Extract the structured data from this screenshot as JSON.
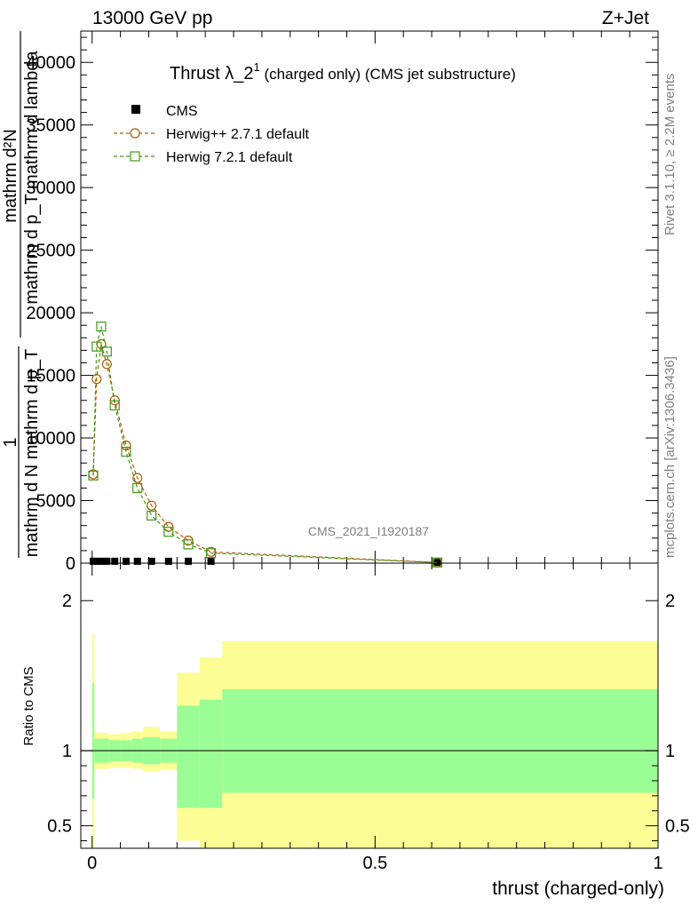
{
  "header": {
    "energy_label": "13000 GeV pp",
    "process_label": "Z+Jet"
  },
  "side_labels": {
    "rivet": "Rivet 3.1.10, ≥ 2.2M events",
    "mcplots": "mcplots.cern.ch [arXiv:1306.3436]"
  },
  "chart_data": [
    {
      "type": "line",
      "title_main": "Thrust λ_2",
      "title_sup": "1",
      "title_rest": " (charged only) (CMS jet substructure)",
      "watermark": "CMS_2021_I1920187",
      "ylabel_numerator": "mathrm d²N",
      "ylabel_denominator": "mathrm d p_T mathrm d lambda",
      "ylabel_prefix_num": "1",
      "ylabel_prefix_den": "mathrm d N   mathrm d p_T",
      "xlim": [
        -0.02,
        1.0
      ],
      "ylim": [
        0,
        42500
      ],
      "y_ticks": [
        0,
        5000,
        10000,
        15000,
        20000,
        25000,
        30000,
        35000,
        40000
      ],
      "y_tick_labels": [
        "0",
        "5000",
        "10000",
        "15000",
        "20000",
        "25000",
        "30000",
        "35000",
        "40000"
      ],
      "legend_position": "top-left",
      "legend": [
        "CMS",
        "Herwig++ 2.7.1 default",
        "Herwig 7.2.1 default"
      ],
      "series": [
        {
          "name": "CMS",
          "color": "#000000",
          "marker": "filled-square",
          "x": [
            0.002,
            0.008,
            0.016,
            0.026,
            0.04,
            0.06,
            0.08,
            0.105,
            0.135,
            0.17,
            0.21,
            0.61
          ],
          "y": [
            150,
            150,
            150,
            150,
            150,
            150,
            150,
            150,
            150,
            150,
            150,
            60
          ]
        },
        {
          "name": "Herwig++ 2.7.1 default",
          "color": "#b35900",
          "marker": "open-circle",
          "x": [
            0.002,
            0.008,
            0.016,
            0.026,
            0.04,
            0.06,
            0.08,
            0.105,
            0.135,
            0.17,
            0.21,
            0.61
          ],
          "y": [
            7100,
            14700,
            17500,
            15900,
            13000,
            9400,
            6800,
            4600,
            2900,
            1800,
            900,
            50
          ]
        },
        {
          "name": "Herwig 7.2.1 default",
          "color": "#3f9a1a",
          "marker": "open-square",
          "x": [
            0.002,
            0.008,
            0.016,
            0.026,
            0.04,
            0.06,
            0.08,
            0.105,
            0.135,
            0.17,
            0.21,
            0.61
          ],
          "y": [
            7000,
            17300,
            18900,
            16900,
            12600,
            8900,
            6000,
            3800,
            2500,
            1500,
            800,
            50
          ]
        }
      ]
    },
    {
      "type": "area",
      "ylabel": "Ratio to CMS",
      "xlabel": "thrust (charged-only)",
      "xlim": [
        -0.02,
        1.0
      ],
      "ylim": [
        0.35,
        2.25
      ],
      "y_ticks": [
        0.5,
        1,
        2
      ],
      "y_tick_labels": [
        "0.5",
        "1",
        "2"
      ],
      "x_ticks": [
        0,
        0.5,
        1
      ],
      "x_tick_labels": [
        "0",
        "0.5",
        "1"
      ],
      "reference_line": 1,
      "bins": [
        {
          "lo": 0.0,
          "hi": 0.004,
          "inner_lo": 0.68,
          "inner_hi": 1.45,
          "outer_lo": 0.0,
          "outer_hi": 1.78
        },
        {
          "lo": 0.004,
          "hi": 0.03,
          "inner_lo": 0.92,
          "inner_hi": 1.08,
          "outer_lo": 0.88,
          "outer_hi": 1.12
        },
        {
          "lo": 0.03,
          "hi": 0.05,
          "inner_lo": 0.93,
          "inner_hi": 1.07,
          "outer_lo": 0.89,
          "outer_hi": 1.11
        },
        {
          "lo": 0.05,
          "hi": 0.07,
          "inner_lo": 0.93,
          "inner_hi": 1.07,
          "outer_lo": 0.89,
          "outer_hi": 1.12
        },
        {
          "lo": 0.07,
          "hi": 0.09,
          "inner_lo": 0.92,
          "inner_hi": 1.08,
          "outer_lo": 0.88,
          "outer_hi": 1.13
        },
        {
          "lo": 0.09,
          "hi": 0.12,
          "inner_lo": 0.91,
          "inner_hi": 1.09,
          "outer_lo": 0.86,
          "outer_hi": 1.16
        },
        {
          "lo": 0.12,
          "hi": 0.15,
          "inner_lo": 0.92,
          "inner_hi": 1.08,
          "outer_lo": 0.87,
          "outer_hi": 1.13
        },
        {
          "lo": 0.15,
          "hi": 0.19,
          "inner_lo": 0.62,
          "inner_hi": 1.3,
          "outer_lo": 0.4,
          "outer_hi": 1.52
        },
        {
          "lo": 0.19,
          "hi": 0.23,
          "inner_lo": 0.62,
          "inner_hi": 1.34,
          "outer_lo": 0.35,
          "outer_hi": 1.62
        },
        {
          "lo": 0.23,
          "hi": 1.0,
          "inner_lo": 0.72,
          "inner_hi": 1.41,
          "outer_lo": 0.0,
          "outer_hi": 1.73
        }
      ],
      "inner_color": "#9bfd95",
      "outer_color": "#fdfd95"
    }
  ]
}
